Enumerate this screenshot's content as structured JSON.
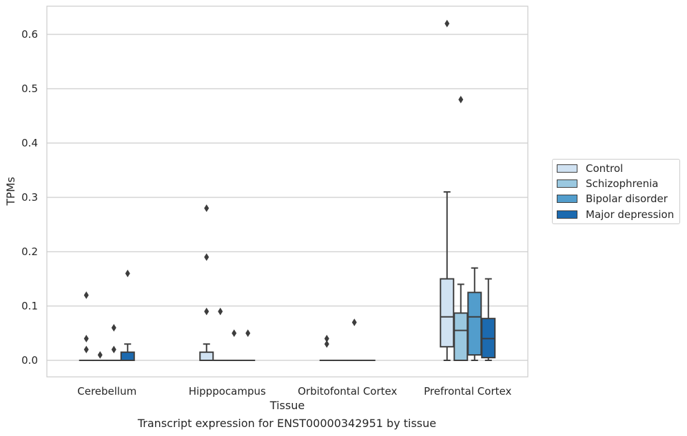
{
  "chart_data": {
    "type": "box",
    "xlabel": "Tissue",
    "ylabel": "TPMs",
    "categories": [
      "Cerebellum",
      "Hipppocampus",
      "Orbitofontal Cortex",
      "Prefrontal Cortex"
    ],
    "ylim": [
      -0.03,
      0.655
    ],
    "yticks": [
      0.0,
      0.1,
      0.2,
      0.3,
      0.4,
      0.5,
      0.6
    ],
    "ytick_labels": [
      "0.0",
      "0.1",
      "0.2",
      "0.3",
      "0.4",
      "0.5",
      "0.6"
    ],
    "grid": true,
    "legend_position": "right",
    "series": [
      {
        "name": "Control",
        "color": "#d0e2f2",
        "boxes": [
          {
            "q1": 0,
            "median": 0,
            "q3": 0,
            "whislo": 0,
            "whishi": 0,
            "fliers": [
              0.12,
              0.04,
              0.02
            ]
          },
          {
            "q1": 0,
            "median": 0,
            "q3": 0.015,
            "whislo": 0,
            "whishi": 0.03,
            "fliers": [
              0.28,
              0.19,
              0.09
            ]
          },
          {
            "q1": 0,
            "median": 0,
            "q3": 0,
            "whislo": 0,
            "whishi": 0,
            "fliers": [
              0.04,
              0.03
            ]
          },
          {
            "q1": 0.025,
            "median": 0.08,
            "q3": 0.15,
            "whislo": 0,
            "whishi": 0.31,
            "fliers": [
              0.62
            ]
          }
        ]
      },
      {
        "name": "Schizophrenia",
        "color": "#9ac8e0",
        "boxes": [
          {
            "q1": 0,
            "median": 0,
            "q3": 0,
            "whislo": 0,
            "whishi": 0,
            "fliers": [
              0.01
            ]
          },
          {
            "q1": 0,
            "median": 0,
            "q3": 0,
            "whislo": 0,
            "whishi": 0,
            "fliers": [
              0.09
            ]
          },
          {
            "q1": 0,
            "median": 0,
            "q3": 0,
            "whislo": 0,
            "whishi": 0,
            "fliers": []
          },
          {
            "q1": 0,
            "median": 0.055,
            "q3": 0.087,
            "whislo": 0,
            "whishi": 0.14,
            "fliers": [
              0.48
            ]
          }
        ]
      },
      {
        "name": "Bipolar disorder",
        "color": "#529dcc",
        "boxes": [
          {
            "q1": 0,
            "median": 0,
            "q3": 0,
            "whislo": 0,
            "whishi": 0,
            "fliers": [
              0.06,
              0.02
            ]
          },
          {
            "q1": 0,
            "median": 0,
            "q3": 0,
            "whislo": 0,
            "whishi": 0,
            "fliers": [
              0.05
            ]
          },
          {
            "q1": 0,
            "median": 0,
            "q3": 0,
            "whislo": 0,
            "whishi": 0,
            "fliers": [
              0.07
            ]
          },
          {
            "q1": 0.01,
            "median": 0.08,
            "q3": 0.125,
            "whislo": 0,
            "whishi": 0.17,
            "fliers": []
          }
        ]
      },
      {
        "name": "Major depression",
        "color": "#1c6aaf",
        "boxes": [
          {
            "q1": 0,
            "median": 0,
            "q3": 0.015,
            "whislo": 0,
            "whishi": 0.03,
            "fliers": [
              0.16
            ]
          },
          {
            "q1": 0,
            "median": 0,
            "q3": 0,
            "whislo": 0,
            "whishi": 0,
            "fliers": [
              0.05
            ]
          },
          {
            "q1": 0,
            "median": 0,
            "q3": 0,
            "whislo": 0,
            "whishi": 0,
            "fliers": []
          },
          {
            "q1": 0.005,
            "median": 0.04,
            "q3": 0.077,
            "whislo": 0,
            "whishi": 0.15,
            "fliers": []
          }
        ]
      }
    ]
  },
  "caption": "Transcript expression for ENST00000342951 by tissue"
}
